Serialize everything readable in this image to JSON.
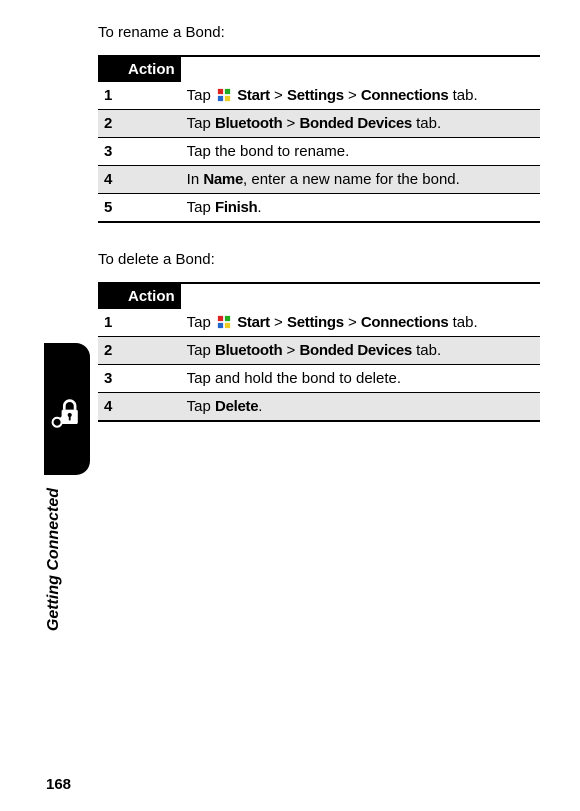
{
  "intro_rename": "To rename a Bond:",
  "intro_delete": "To delete a Bond:",
  "table_header": "Action",
  "rename_steps": [
    {
      "n": "1",
      "pre": "Tap ",
      "icon": true,
      "parts": [
        {
          "b": "Start"
        },
        {
          "t": " > "
        },
        {
          "b": "Settings"
        },
        {
          "t": " > "
        },
        {
          "b": "Connections"
        },
        {
          "t": " tab."
        }
      ]
    },
    {
      "n": "2",
      "pre": "Tap ",
      "icon": false,
      "parts": [
        {
          "b": "Bluetooth"
        },
        {
          "t": " > "
        },
        {
          "b": "Bonded Devices"
        },
        {
          "t": " tab."
        }
      ]
    },
    {
      "n": "3",
      "pre": "Tap the bond to rename.",
      "icon": false,
      "parts": []
    },
    {
      "n": "4",
      "pre": "In ",
      "icon": false,
      "parts": [
        {
          "b": "Name"
        },
        {
          "t": ", enter a new name for the bond."
        }
      ]
    },
    {
      "n": "5",
      "pre": "Tap ",
      "icon": false,
      "parts": [
        {
          "b": "Finish"
        },
        {
          "t": "."
        }
      ]
    }
  ],
  "delete_steps": [
    {
      "n": "1",
      "pre": "Tap ",
      "icon": true,
      "parts": [
        {
          "b": "Start"
        },
        {
          "t": " > "
        },
        {
          "b": "Settings"
        },
        {
          "t": " > "
        },
        {
          "b": "Connections"
        },
        {
          "t": " tab."
        }
      ]
    },
    {
      "n": "2",
      "pre": "Tap ",
      "icon": false,
      "parts": [
        {
          "b": "Bluetooth"
        },
        {
          "t": " > "
        },
        {
          "b": "Bonded Devices"
        },
        {
          "t": " tab."
        }
      ]
    },
    {
      "n": "3",
      "pre": "Tap and hold the bond to delete.",
      "icon": false,
      "parts": []
    },
    {
      "n": "4",
      "pre": "Tap ",
      "icon": false,
      "parts": [
        {
          "b": "Delete"
        },
        {
          "t": "."
        }
      ]
    }
  ],
  "section_label": "Getting Connected",
  "page_number": "168",
  "colors": {
    "header_bg": "#000000",
    "header_fg": "#ffffff",
    "alt_bg": "#e6e6e6"
  }
}
